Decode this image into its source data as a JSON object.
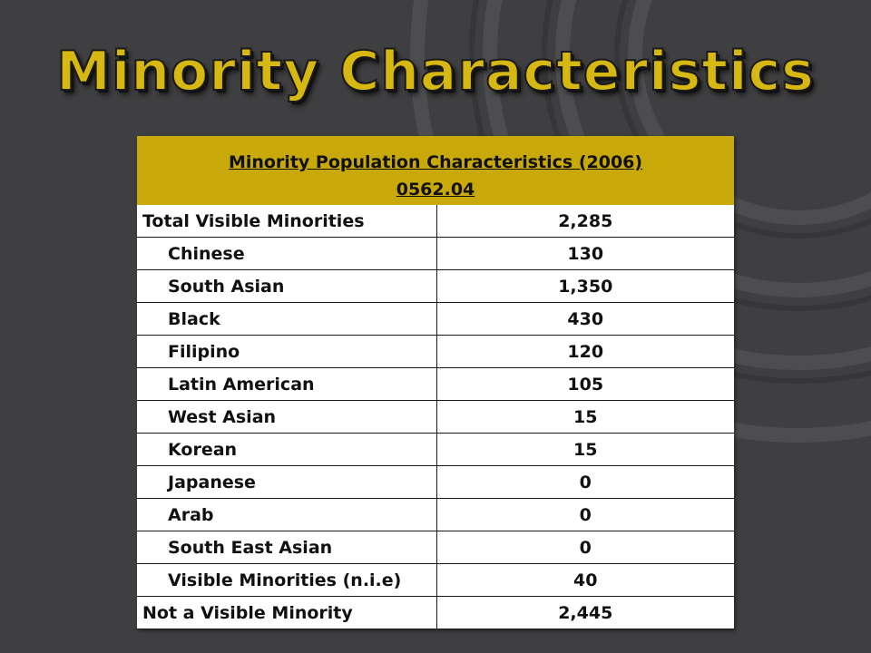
{
  "slide_title": "Minority Characteristics",
  "colors": {
    "background": "#3f3f41",
    "title": "#d7b712",
    "header_band": "#c9a90a",
    "table_bg": "#ffffff"
  },
  "chart_data": {
    "type": "table",
    "title": "Minority Population Characteristics (2006)",
    "subtitle": "0562.04",
    "rows": [
      {
        "label": "Total Visible Minorities",
        "value": "2,285",
        "level": 0
      },
      {
        "label": "Chinese",
        "value": "130",
        "level": 1
      },
      {
        "label": "South Asian",
        "value": "1,350",
        "level": 1
      },
      {
        "label": "Black",
        "value": "430",
        "level": 1
      },
      {
        "label": "Filipino",
        "value": "120",
        "level": 1
      },
      {
        "label": "Latin American",
        "value": "105",
        "level": 1
      },
      {
        "label": "West Asian",
        "value": "15",
        "level": 1
      },
      {
        "label": "Korean",
        "value": "15",
        "level": 1
      },
      {
        "label": "Japanese",
        "value": "0",
        "level": 1
      },
      {
        "label": "Arab",
        "value": "0",
        "level": 1
      },
      {
        "label": "South East Asian",
        "value": "0",
        "level": 1
      },
      {
        "label": "Visible Minorities (n.i.e)",
        "value": "40",
        "level": 1
      },
      {
        "label": "Not a Visible Minority",
        "value": "2,445",
        "level": 0
      }
    ]
  }
}
